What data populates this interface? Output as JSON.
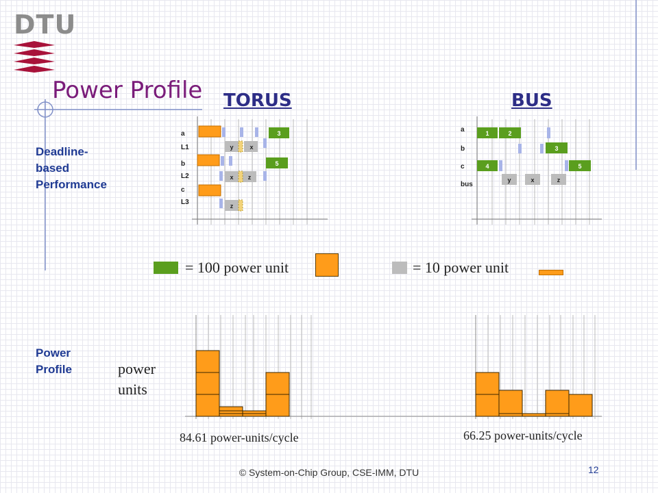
{
  "logo": {
    "text": "DTU"
  },
  "title": "Power Profile",
  "columns": {
    "torus": "TORUS",
    "bus": "BUS"
  },
  "section_labels": {
    "deadline": [
      "Deadline-",
      "based",
      "Performance"
    ],
    "power": [
      "Power",
      "Profile"
    ]
  },
  "torus_rows": [
    "a",
    "L1",
    "b",
    "L2",
    "c",
    "L3"
  ],
  "bus_rows": [
    "a",
    "b",
    "c",
    "bus"
  ],
  "torus_tasks": [
    "3",
    "5"
  ],
  "torus_msgs": [
    "y",
    "x",
    "x",
    "z",
    "z"
  ],
  "bus_tasks": [
    "1",
    "2",
    "3",
    "4",
    "5"
  ],
  "bus_msgs": [
    "y",
    "x",
    "z"
  ],
  "legend": {
    "green": "= 100 power unit",
    "gray": "= 10 power unit"
  },
  "axis_label": [
    "power",
    "units"
  ],
  "results": {
    "torus": "84.61 power-units/cycle",
    "bus": "66.25 power-units/cycle"
  },
  "footer": "© System-on-Chip Group, CSE-IMM, DTU",
  "page_number": "12",
  "colors": {
    "orange": "#ff9c1a",
    "green": "#5a9e1e",
    "lavender": "#a8b4e8",
    "gray": "#bcbcbc",
    "accent": "#7a1c7a",
    "blue": "#1f3a93"
  }
}
